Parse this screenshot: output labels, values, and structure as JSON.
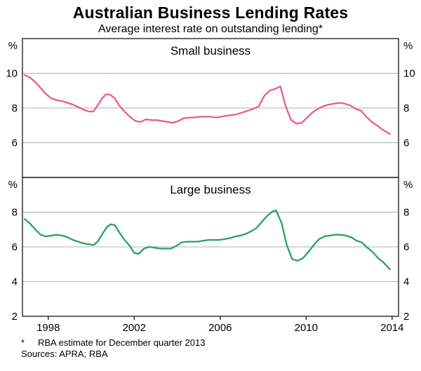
{
  "title": "Australian Business Lending Rates",
  "subtitle": "Average interest rate on outstanding lending*",
  "footnote_marker": "*",
  "footnote_text": "RBA estimate for December quarter 2013",
  "sources": "Sources: APRA; RBA",
  "colors": {
    "small_business_line": "#ee5a90",
    "large_business_line": "#29a065",
    "gridline": "#999999",
    "frame": "#000000"
  },
  "chart_data": [
    {
      "type": "line",
      "panel_title": "Small business",
      "ylabel_left": "%",
      "ylabel_right": "%",
      "xlim": [
        1996.8,
        2014.3
      ],
      "ylim": [
        4,
        12
      ],
      "yticks": [
        6,
        8,
        10
      ],
      "xticks": [
        1998,
        2002,
        2006,
        2010,
        2014
      ],
      "show_x_labels": false,
      "grid": true,
      "series": [
        {
          "name": "Small business",
          "color": "#ee5a90",
          "points": [
            [
              1996.9,
              9.9
            ],
            [
              1997.15,
              9.75
            ],
            [
              1997.4,
              9.5
            ],
            [
              1997.65,
              9.15
            ],
            [
              1997.9,
              8.8
            ],
            [
              1998.15,
              8.55
            ],
            [
              1998.4,
              8.45
            ],
            [
              1998.65,
              8.4
            ],
            [
              1998.9,
              8.3
            ],
            [
              1999.15,
              8.2
            ],
            [
              1999.4,
              8.05
            ],
            [
              1999.65,
              7.9
            ],
            [
              1999.9,
              7.8
            ],
            [
              2000.1,
              7.8
            ],
            [
              2000.3,
              8.15
            ],
            [
              2000.5,
              8.55
            ],
            [
              2000.7,
              8.8
            ],
            [
              2000.9,
              8.75
            ],
            [
              2001.1,
              8.55
            ],
            [
              2001.3,
              8.15
            ],
            [
              2001.55,
              7.8
            ],
            [
              2001.8,
              7.5
            ],
            [
              2002.05,
              7.25
            ],
            [
              2002.3,
              7.2
            ],
            [
              2002.55,
              7.35
            ],
            [
              2002.8,
              7.3
            ],
            [
              2003.05,
              7.3
            ],
            [
              2003.3,
              7.25
            ],
            [
              2003.55,
              7.2
            ],
            [
              2003.8,
              7.15
            ],
            [
              2004.05,
              7.25
            ],
            [
              2004.3,
              7.4
            ],
            [
              2004.55,
              7.45
            ],
            [
              2004.8,
              7.45
            ],
            [
              2005.05,
              7.5
            ],
            [
              2005.3,
              7.5
            ],
            [
              2005.55,
              7.5
            ],
            [
              2005.8,
              7.45
            ],
            [
              2006.05,
              7.5
            ],
            [
              2006.3,
              7.55
            ],
            [
              2006.55,
              7.6
            ],
            [
              2006.8,
              7.65
            ],
            [
              2007.05,
              7.75
            ],
            [
              2007.3,
              7.85
            ],
            [
              2007.55,
              7.95
            ],
            [
              2007.8,
              8.1
            ],
            [
              2008.05,
              8.7
            ],
            [
              2008.3,
              9.0
            ],
            [
              2008.55,
              9.1
            ],
            [
              2008.8,
              9.25
            ],
            [
              2009.05,
              8.1
            ],
            [
              2009.3,
              7.3
            ],
            [
              2009.55,
              7.1
            ],
            [
              2009.8,
              7.15
            ],
            [
              2010.05,
              7.45
            ],
            [
              2010.3,
              7.75
            ],
            [
              2010.55,
              7.95
            ],
            [
              2010.8,
              8.1
            ],
            [
              2011.05,
              8.2
            ],
            [
              2011.3,
              8.25
            ],
            [
              2011.55,
              8.3
            ],
            [
              2011.8,
              8.25
            ],
            [
              2012.05,
              8.15
            ],
            [
              2012.3,
              7.95
            ],
            [
              2012.55,
              7.85
            ],
            [
              2012.8,
              7.5
            ],
            [
              2013.05,
              7.2
            ],
            [
              2013.3,
              7.0
            ],
            [
              2013.55,
              6.75
            ],
            [
              2013.9,
              6.5
            ]
          ]
        }
      ]
    },
    {
      "type": "line",
      "panel_title": "Large business",
      "ylabel_left": "%",
      "ylabel_right": "%",
      "xlim": [
        1996.8,
        2014.3
      ],
      "ylim": [
        2,
        10
      ],
      "yticks": [
        2,
        4,
        6,
        8
      ],
      "xticks": [
        1998,
        2002,
        2006,
        2010,
        2014
      ],
      "show_x_labels": true,
      "grid": true,
      "series": [
        {
          "name": "Large business",
          "color": "#29a065",
          "points": [
            [
              1996.9,
              7.6
            ],
            [
              1997.15,
              7.35
            ],
            [
              1997.4,
              7.0
            ],
            [
              1997.65,
              6.7
            ],
            [
              1997.9,
              6.6
            ],
            [
              1998.15,
              6.65
            ],
            [
              1998.4,
              6.7
            ],
            [
              1998.65,
              6.65
            ],
            [
              1998.9,
              6.55
            ],
            [
              1999.15,
              6.4
            ],
            [
              1999.4,
              6.3
            ],
            [
              1999.65,
              6.2
            ],
            [
              1999.9,
              6.15
            ],
            [
              2000.1,
              6.1
            ],
            [
              2000.3,
              6.3
            ],
            [
              2000.5,
              6.7
            ],
            [
              2000.7,
              7.1
            ],
            [
              2000.9,
              7.3
            ],
            [
              2001.1,
              7.25
            ],
            [
              2001.3,
              6.85
            ],
            [
              2001.55,
              6.4
            ],
            [
              2001.8,
              6.05
            ],
            [
              2002.0,
              5.65
            ],
            [
              2002.2,
              5.6
            ],
            [
              2002.45,
              5.9
            ],
            [
              2002.7,
              6.0
            ],
            [
              2002.95,
              5.95
            ],
            [
              2003.2,
              5.9
            ],
            [
              2003.45,
              5.9
            ],
            [
              2003.7,
              5.9
            ],
            [
              2003.95,
              6.05
            ],
            [
              2004.2,
              6.25
            ],
            [
              2004.45,
              6.3
            ],
            [
              2004.7,
              6.3
            ],
            [
              2004.95,
              6.3
            ],
            [
              2005.2,
              6.35
            ],
            [
              2005.45,
              6.4
            ],
            [
              2005.7,
              6.4
            ],
            [
              2005.95,
              6.4
            ],
            [
              2006.2,
              6.45
            ],
            [
              2006.45,
              6.5
            ],
            [
              2006.7,
              6.6
            ],
            [
              2006.95,
              6.65
            ],
            [
              2007.2,
              6.75
            ],
            [
              2007.45,
              6.9
            ],
            [
              2007.7,
              7.1
            ],
            [
              2007.95,
              7.45
            ],
            [
              2008.2,
              7.8
            ],
            [
              2008.45,
              8.05
            ],
            [
              2008.6,
              8.1
            ],
            [
              2008.85,
              7.4
            ],
            [
              2009.1,
              6.1
            ],
            [
              2009.35,
              5.3
            ],
            [
              2009.6,
              5.2
            ],
            [
              2009.85,
              5.35
            ],
            [
              2010.1,
              5.7
            ],
            [
              2010.35,
              6.1
            ],
            [
              2010.6,
              6.45
            ],
            [
              2010.85,
              6.6
            ],
            [
              2011.1,
              6.65
            ],
            [
              2011.35,
              6.7
            ],
            [
              2011.6,
              6.7
            ],
            [
              2011.85,
              6.65
            ],
            [
              2012.1,
              6.55
            ],
            [
              2012.35,
              6.35
            ],
            [
              2012.6,
              6.25
            ],
            [
              2012.85,
              5.95
            ],
            [
              2013.1,
              5.7
            ],
            [
              2013.35,
              5.35
            ],
            [
              2013.6,
              5.1
            ],
            [
              2013.9,
              4.7
            ]
          ]
        }
      ]
    }
  ]
}
